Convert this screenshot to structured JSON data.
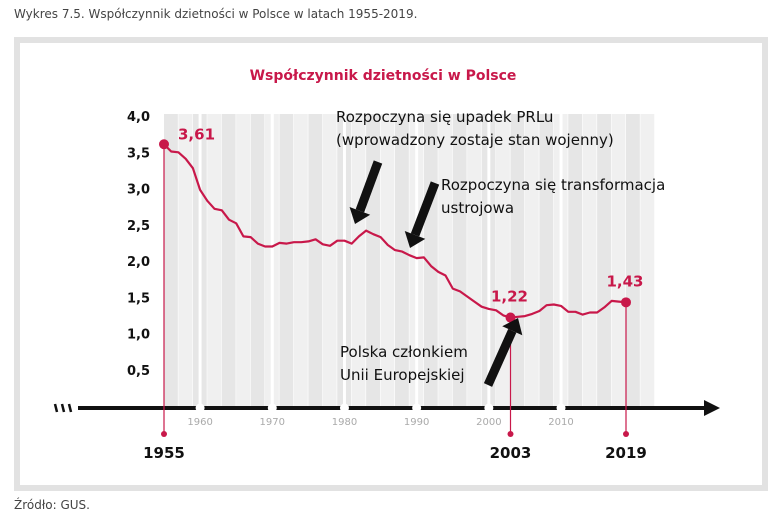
{
  "caption": "Wykres 7.5. Współczynnik dzietności w Polsce w latach 1955-2019.",
  "source": "Źródło: GUS.",
  "colors": {
    "line": "#c8184a",
    "band_dark": "#e6e6e6",
    "band_light": "#f0f0f0",
    "axis": "#111111"
  },
  "chart_data": {
    "type": "line",
    "title": "Współczynnik dzietności w Polsce",
    "xlabel": "",
    "ylabel": "",
    "xlim": [
      1955,
      2019
    ],
    "ylim": [
      0,
      4
    ],
    "yticks": [
      "0,5",
      "1,0",
      "1,5",
      "2,0",
      "2,5",
      "3,0",
      "3,5",
      "4,0"
    ],
    "ytick_values": [
      0.5,
      1.0,
      1.5,
      2.0,
      2.5,
      3.0,
      3.5,
      4.0
    ],
    "xticks": [
      "1960",
      "1970",
      "1980",
      "1990",
      "2000",
      "2010"
    ],
    "xtick_values": [
      1960,
      1970,
      1980,
      1990,
      2000,
      2010
    ],
    "highlight_years": [
      "1955",
      "2003",
      "2019"
    ],
    "highlight_year_values": [
      1955,
      2003,
      2019
    ],
    "series": [
      {
        "x": [
          1955,
          1956,
          1957,
          1958,
          1959,
          1960,
          1961,
          1962,
          1963,
          1964,
          1965,
          1966,
          1967,
          1968,
          1969,
          1970,
          1971,
          1972,
          1973,
          1974,
          1975,
          1976,
          1977,
          1978,
          1979,
          1980,
          1981,
          1982,
          1983,
          1984,
          1985,
          1986,
          1987,
          1988,
          1989,
          1990,
          1991,
          1992,
          1993,
          1994,
          1995,
          1996,
          1997,
          1998,
          1999,
          2000,
          2001,
          2002,
          2003,
          2004,
          2005,
          2006,
          2007,
          2008,
          2009,
          2010,
          2011,
          2012,
          2013,
          2014,
          2015,
          2016,
          2017,
          2018,
          2019
        ],
        "y": [
          3.61,
          3.51,
          3.5,
          3.41,
          3.28,
          2.98,
          2.83,
          2.72,
          2.7,
          2.57,
          2.52,
          2.34,
          2.33,
          2.24,
          2.2,
          2.2,
          2.25,
          2.24,
          2.26,
          2.26,
          2.27,
          2.3,
          2.23,
          2.21,
          2.28,
          2.28,
          2.24,
          2.34,
          2.42,
          2.37,
          2.33,
          2.22,
          2.15,
          2.13,
          2.08,
          2.04,
          2.05,
          1.93,
          1.85,
          1.8,
          1.62,
          1.58,
          1.51,
          1.44,
          1.37,
          1.34,
          1.32,
          1.25,
          1.22,
          1.23,
          1.24,
          1.27,
          1.31,
          1.39,
          1.4,
          1.38,
          1.3,
          1.3,
          1.26,
          1.29,
          1.29,
          1.36,
          1.45,
          1.44,
          1.43
        ]
      }
    ],
    "data_labels": [
      {
        "x": 1955,
        "y": 3.61,
        "text": "3,61"
      },
      {
        "x": 2003,
        "y": 1.22,
        "text": "1,22"
      },
      {
        "x": 2019,
        "y": 1.43,
        "text": "1,43"
      }
    ],
    "annotations": [
      {
        "lines": [
          "Rozpoczyna się upadek PRLu",
          "(wprowadzony zostaje stan wojenny)"
        ],
        "target_x": 1981
      },
      {
        "lines": [
          "Rozpoczyna się transformacja",
          "ustrojowa"
        ],
        "target_x": 1989
      },
      {
        "lines": [
          "Polska członkiem",
          "Unii Europejskiej"
        ],
        "target_x": 2004
      }
    ],
    "grid": "vertical-bands",
    "legend": "none"
  }
}
